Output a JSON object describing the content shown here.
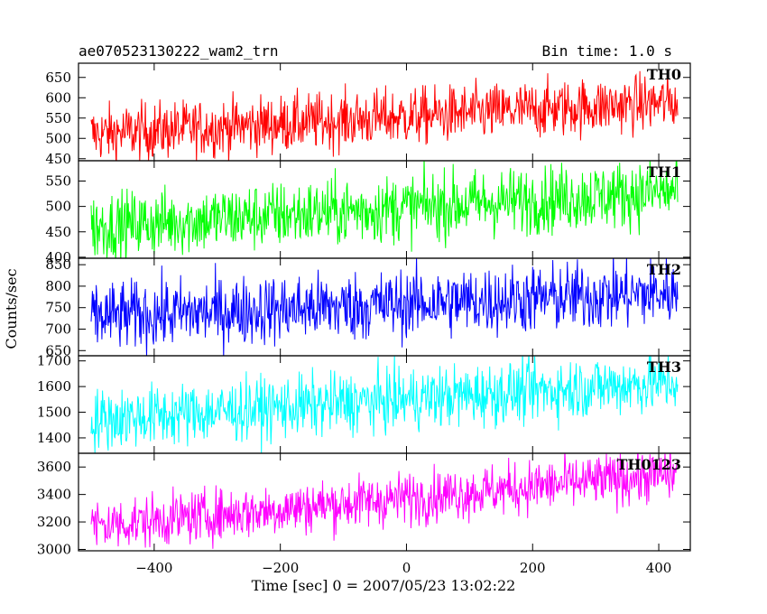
{
  "header": {
    "title": "ae070523130222_wam2_trn",
    "bin_time": "Bin time: 1.0 s"
  },
  "chart_data": {
    "type": "line",
    "title": "ae070523130222_wam2_trn",
    "subtitle": "Bin time: 1.0 s",
    "xlabel": "Time [sec] 0 = 2007/05/23 13:02:22",
    "ylabel": "Counts/sec",
    "xlim": [
      -520,
      450
    ],
    "x_ticks": [
      -400,
      -200,
      0,
      200,
      400
    ],
    "x_range": [
      -500,
      430
    ],
    "bin_time_sec": 1.0,
    "grid": false,
    "legend": "none",
    "panels": [
      {
        "name": "TH0",
        "color": "#ff0000",
        "ylim": [
          445,
          685
        ],
        "y_ticks": [
          450,
          500,
          550,
          600,
          650
        ],
        "trend_start": 510,
        "trend_end": 590,
        "noise": 35
      },
      {
        "name": "TH1",
        "color": "#00ff00",
        "ylim": [
          398,
          590
        ],
        "y_ticks": [
          400,
          450,
          500,
          550
        ],
        "trend_start": 460,
        "trend_end": 530,
        "noise": 33
      },
      {
        "name": "TH2",
        "color": "#0000ff",
        "ylim": [
          638,
          865
        ],
        "y_ticks": [
          650,
          700,
          750,
          800,
          850
        ],
        "trend_start": 728,
        "trend_end": 785,
        "noise": 40
      },
      {
        "name": "TH3",
        "color": "#00ffff",
        "ylim": [
          1340,
          1720
        ],
        "y_ticks": [
          1400,
          1500,
          1600,
          1700
        ],
        "trend_start": 1470,
        "trend_end": 1620,
        "noise": 60
      },
      {
        "name": "TH0123",
        "color": "#ff00ff",
        "ylim": [
          2990,
          3700
        ],
        "y_ticks": [
          3000,
          3200,
          3400,
          3600
        ],
        "trend_start": 3170,
        "trend_end": 3550,
        "noise": 95
      }
    ]
  }
}
